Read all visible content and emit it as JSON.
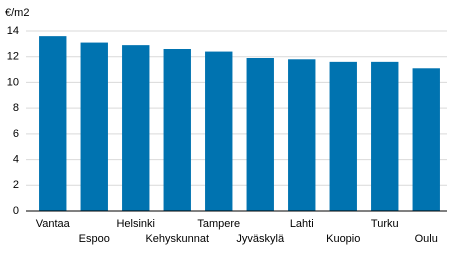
{
  "chart_data": {
    "type": "bar",
    "y_label": "€/m2",
    "categories": [
      "Vantaa",
      "Espoo",
      "Helsinki",
      "Kehyskunnat",
      "Tampere",
      "Jyväskylä",
      "Lahti",
      "Kuopio",
      "Turku",
      "Oulu"
    ],
    "values": [
      13.6,
      13.1,
      12.9,
      12.6,
      12.4,
      11.9,
      11.8,
      11.6,
      11.6,
      11.1
    ],
    "color": "#0073b0",
    "ylim": [
      0,
      14
    ],
    "yticks": [
      0,
      2,
      4,
      6,
      8,
      10,
      12,
      14
    ],
    "grid": true
  }
}
